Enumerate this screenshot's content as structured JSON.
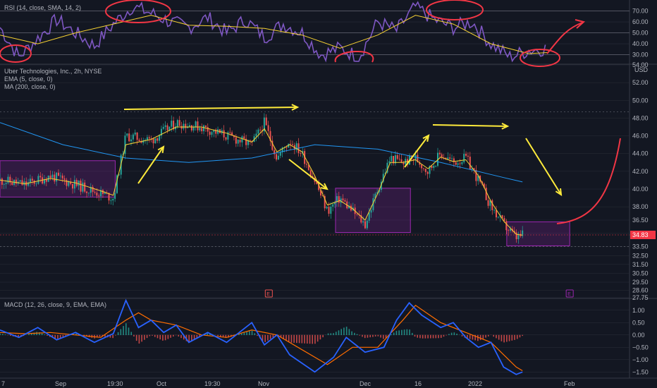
{
  "colors": {
    "background": "#131722",
    "grid": "#2a2e39",
    "axis_text": "#b2b5be",
    "rsi": "#7e57c2",
    "rsi_sma": "#f7d232",
    "ema": "#f7d232",
    "ma": "#2196f3",
    "macd": "#2962ff",
    "signal": "#ff6d00",
    "hist_up": "#26a69a",
    "hist_down": "#ef5350",
    "candle_up": "#26a69a",
    "candle_down": "#ef5350",
    "annotation_yellow": "#ffeb3b",
    "annotation_red": "#f23645",
    "box_fill": "#9c27b0",
    "price_label": "#f23645",
    "earnings": "#ef5350",
    "earnings_purple": "#9c27b0"
  },
  "rsi_panel": {
    "legend": "RSI (14, close, SMA, 14, 2)",
    "ticks": [
      "70.00",
      "60.00",
      "50.00",
      "40.00",
      "30.00"
    ],
    "ylim": [
      22,
      80
    ]
  },
  "price_panel": {
    "legend_title": "Uber Technologies, Inc., 2h, NYSE",
    "legend_ema": "EMA (5, close, 0)",
    "legend_ma": "MA (200, close, 0)",
    "currency": "USD",
    "ticks": [
      "54.00",
      "52.00",
      "50.00",
      "48.00",
      "46.00",
      "44.00",
      "42.00",
      "40.00",
      "38.00",
      "36.50",
      "35.00",
      "33.50",
      "32.50",
      "31.50",
      "30.50",
      "29.50",
      "28.60",
      "27.75"
    ],
    "last_price": "34.83",
    "earnings_markers": [
      "E",
      "E"
    ]
  },
  "macd_panel": {
    "legend": "MACD (12, 26, close, 9, EMA, EMA)",
    "ticks": [
      "1.00",
      "0.50",
      "0.00",
      "−0.50",
      "−1.00",
      "−1.50"
    ],
    "ylim": [
      -1.75,
      1.45
    ]
  },
  "time_axis": [
    "7",
    "Sep",
    "19:30",
    "Oct",
    "19:30",
    "Nov",
    "Dec",
    "16",
    "2022",
    "Feb"
  ],
  "chart_data": [
    {
      "type": "line",
      "title": "RSI (14, close, SMA, 14, 2)",
      "series": [
        {
          "name": "RSI",
          "x": [
            0,
            0.03,
            0.06,
            0.09,
            0.12,
            0.15,
            0.18,
            0.21,
            0.24,
            0.27,
            0.3,
            0.33,
            0.36,
            0.39,
            0.42,
            0.45,
            0.48,
            0.51,
            0.54,
            0.57,
            0.6,
            0.63,
            0.66,
            0.69,
            0.72,
            0.75,
            0.78,
            0.81,
            0.84,
            0.87
          ],
          "values": [
            55,
            28,
            45,
            62,
            50,
            38,
            58,
            74,
            68,
            60,
            55,
            64,
            50,
            62,
            46,
            58,
            50,
            30,
            36,
            28,
            60,
            52,
            74,
            62,
            55,
            60,
            40,
            28,
            34,
            36
          ]
        },
        {
          "name": "SMA",
          "x": [
            0,
            0.06,
            0.12,
            0.18,
            0.24,
            0.3,
            0.36,
            0.42,
            0.48,
            0.54,
            0.6,
            0.66,
            0.72,
            0.78,
            0.84,
            0.87
          ],
          "values": [
            48,
            40,
            50,
            58,
            66,
            57,
            56,
            54,
            48,
            36,
            48,
            66,
            58,
            40,
            31,
            32
          ]
        }
      ],
      "ylim": [
        22,
        80
      ]
    },
    {
      "type": "line",
      "title": "Uber Technologies, Inc., 2h, NYSE",
      "ylabel": "USD",
      "series": [
        {
          "name": "close",
          "x": [
            0,
            0.04,
            0.08,
            0.12,
            0.16,
            0.18,
            0.2,
            0.24,
            0.28,
            0.32,
            0.36,
            0.4,
            0.42,
            0.44,
            0.46,
            0.48,
            0.5,
            0.52,
            0.54,
            0.56,
            0.58,
            0.6,
            0.62,
            0.64,
            0.66,
            0.68,
            0.7,
            0.72,
            0.74,
            0.76,
            0.78,
            0.8,
            0.82,
            0.83
          ],
          "values": [
            41,
            40.5,
            41.5,
            40.5,
            39.5,
            39,
            46,
            45.5,
            47.5,
            47,
            46,
            45,
            47.5,
            43.5,
            45.5,
            44,
            41,
            37.5,
            39,
            37.5,
            36,
            40,
            43.5,
            43,
            43.5,
            42,
            44,
            43,
            43.5,
            41,
            38,
            36,
            34.5,
            34.8
          ]
        },
        {
          "name": "EMA (5, close, 0)",
          "x": [
            0,
            0.04,
            0.08,
            0.12,
            0.16,
            0.18,
            0.2,
            0.24,
            0.28,
            0.32,
            0.36,
            0.4,
            0.42,
            0.44,
            0.46,
            0.48,
            0.5,
            0.52,
            0.54,
            0.56,
            0.58,
            0.6,
            0.62,
            0.64,
            0.66,
            0.68,
            0.7,
            0.72,
            0.74,
            0.76,
            0.78,
            0.8,
            0.82,
            0.83
          ],
          "values": [
            41,
            40.6,
            41.2,
            40.7,
            39.8,
            39.3,
            45,
            45.6,
            47,
            47,
            46.3,
            45.3,
            46.8,
            44.2,
            45,
            44.2,
            41.5,
            38.2,
            38.7,
            37.8,
            36.5,
            39.5,
            43,
            43,
            43.3,
            42.3,
            43.6,
            43.1,
            43.3,
            41.5,
            38.6,
            36.4,
            34.9,
            34.8
          ]
        },
        {
          "name": "MA (200, close, 0)",
          "x": [
            0,
            0.1,
            0.2,
            0.3,
            0.4,
            0.5,
            0.6,
            0.7,
            0.8,
            0.83
          ],
          "values": [
            47.5,
            45,
            43.5,
            43,
            43.5,
            45,
            44.5,
            43,
            41.3,
            40.8
          ]
        }
      ],
      "ylim": [
        27.75,
        54
      ]
    },
    {
      "type": "line",
      "title": "MACD (12, 26, close, 9, EMA, EMA)",
      "series": [
        {
          "name": "MACD",
          "x": [
            0,
            0.03,
            0.06,
            0.09,
            0.12,
            0.15,
            0.18,
            0.2,
            0.22,
            0.24,
            0.26,
            0.28,
            0.3,
            0.33,
            0.36,
            0.4,
            0.42,
            0.44,
            0.46,
            0.5,
            0.53,
            0.55,
            0.58,
            0.61,
            0.63,
            0.65,
            0.67,
            0.7,
            0.72,
            0.74,
            0.76,
            0.78,
            0.8,
            0.82,
            0.83
          ],
          "values": [
            0.2,
            -0.1,
            0.3,
            -0.2,
            0.1,
            -0.3,
            0.05,
            1.4,
            0.3,
            0.6,
            0.1,
            0.4,
            -0.3,
            0.1,
            -0.3,
            0.5,
            -0.4,
            0.0,
            -0.8,
            -1.5,
            -0.9,
            -0.1,
            -0.7,
            -0.5,
            0.6,
            1.3,
            0.8,
            0.3,
            0.5,
            -0.1,
            -0.5,
            -0.3,
            -1.3,
            -1.6,
            -1.5
          ]
        },
        {
          "name": "Signal",
          "x": [
            0,
            0.04,
            0.08,
            0.12,
            0.16,
            0.2,
            0.22,
            0.24,
            0.28,
            0.32,
            0.36,
            0.4,
            0.44,
            0.48,
            0.52,
            0.56,
            0.6,
            0.64,
            0.66,
            0.7,
            0.74,
            0.78,
            0.82,
            0.83
          ],
          "values": [
            0.1,
            0.05,
            0.1,
            0.0,
            -0.1,
            0.6,
            0.9,
            0.6,
            0.4,
            0.0,
            -0.1,
            0.2,
            0.0,
            -0.6,
            -1.2,
            -0.5,
            -0.5,
            0.6,
            1.2,
            0.5,
            0.1,
            -0.3,
            -1.3,
            -1.45
          ]
        }
      ],
      "ylim": [
        -1.75,
        1.45
      ]
    }
  ]
}
